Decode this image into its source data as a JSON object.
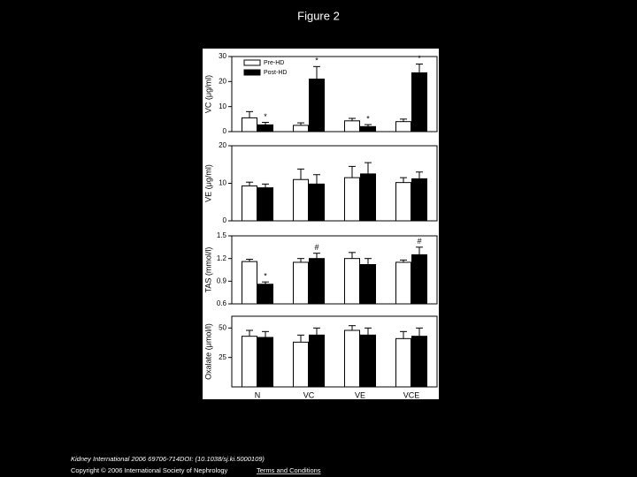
{
  "title": "Figure 2",
  "chart_data": [
    {
      "type": "bar",
      "y_label": "VC (μg/ml)",
      "ylim": [
        0,
        30
      ],
      "yticks": [
        0,
        10,
        20,
        30
      ],
      "legend": "upper left",
      "series": [
        {
          "name": "Pre-HD",
          "color": "#ffffff",
          "values": [
            5.5,
            2.5,
            4.3,
            4
          ],
          "errors": [
            2.5,
            1,
            1,
            1
          ],
          "annotations": [
            null,
            null,
            null,
            null
          ]
        },
        {
          "name": "Post-HD",
          "color": "#000000",
          "values": [
            2.7,
            21,
            2,
            23.5
          ],
          "errors": [
            1,
            5,
            0.8,
            3.5
          ],
          "annotations": [
            "*",
            "*",
            "*",
            "*"
          ]
        }
      ]
    },
    {
      "type": "bar",
      "y_label": "VE (μg/ml)",
      "ylim": [
        0,
        20
      ],
      "yticks": [
        0,
        10,
        20
      ],
      "series": [
        {
          "color": "#ffffff",
          "values": [
            9.3,
            11,
            11.5,
            10.2
          ],
          "errors": [
            1,
            2.8,
            3,
            1.3
          ]
        },
        {
          "color": "#000000",
          "values": [
            8.8,
            9.8,
            12.5,
            11.2
          ],
          "errors": [
            1,
            2.5,
            3,
            1.8
          ]
        }
      ]
    },
    {
      "type": "bar",
      "y_label": "TAS (mmol/l)",
      "ylim": [
        0.6,
        1.5
      ],
      "yticks": [
        0.6,
        0.9,
        1.2,
        1.5
      ],
      "series": [
        {
          "color": "#ffffff",
          "values": [
            1.16,
            1.15,
            1.2,
            1.15
          ],
          "errors": [
            0.03,
            0.05,
            0.08,
            0.03
          ],
          "annotations": [
            null,
            null,
            null,
            null
          ]
        },
        {
          "color": "#000000",
          "values": [
            0.86,
            1.2,
            1.12,
            1.25
          ],
          "errors": [
            0.03,
            0.07,
            0.08,
            0.1
          ],
          "annotations": [
            "*",
            "#",
            null,
            "#"
          ]
        }
      ]
    },
    {
      "type": "bar",
      "y_label": "Oxalate (μmol/l)",
      "ylim": [
        0,
        60
      ],
      "yticks": [
        25,
        50
      ],
      "categories": [
        "N",
        "VC",
        "VE",
        "VCE"
      ],
      "series": [
        {
          "color": "#ffffff",
          "values": [
            43,
            38,
            48,
            41
          ],
          "errors": [
            5,
            6,
            4,
            6
          ]
        },
        {
          "color": "#000000",
          "values": [
            42,
            44,
            44,
            43
          ],
          "errors": [
            5,
            6,
            6,
            7
          ]
        }
      ]
    }
  ],
  "footer": {
    "citation": "Kidney International 2006 69706-714DOI: (10.1038/sj.ki.5000109)",
    "copyright": "Copyright © 2006 International Society of Nephrology",
    "link": "Terms and Conditions"
  }
}
